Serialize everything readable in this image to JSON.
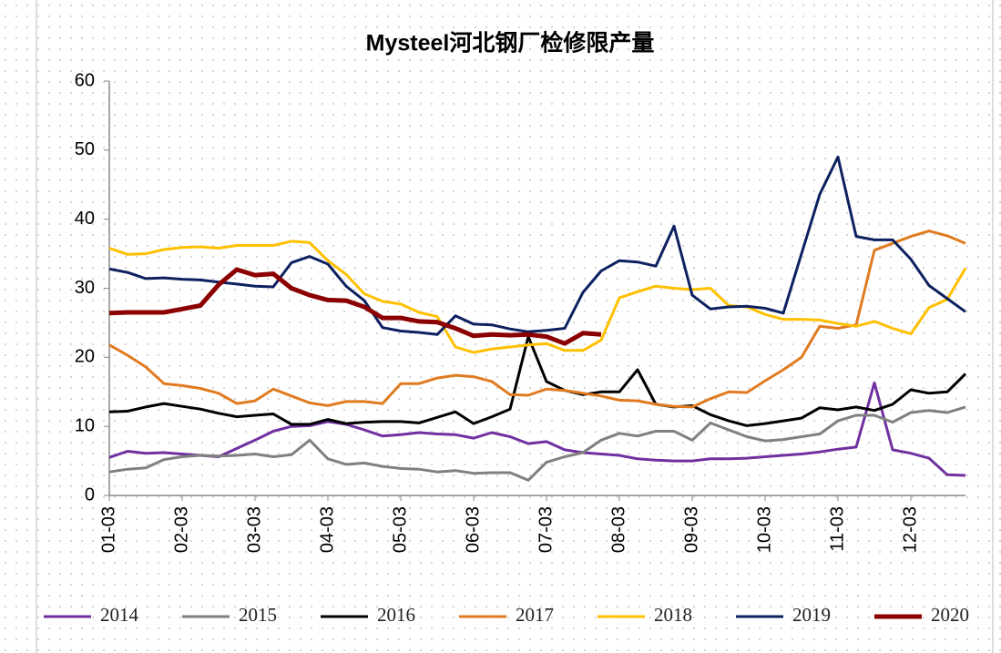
{
  "chart_data": {
    "type": "line",
    "title": "Mysteel河北钢厂检修限产量",
    "categories": [
      "01-03",
      null,
      null,
      null,
      "02-03",
      null,
      null,
      null,
      "03-03",
      null,
      null,
      null,
      "04-03",
      null,
      null,
      null,
      "05-03",
      null,
      null,
      null,
      "06-03",
      null,
      null,
      null,
      "07-03",
      null,
      null,
      null,
      "08-03",
      null,
      null,
      null,
      "09-03",
      null,
      null,
      null,
      "10-03",
      null,
      null,
      null,
      "11-03",
      null,
      null,
      null,
      "12-03",
      null,
      null,
      null
    ],
    "ylim": [
      0,
      60
    ],
    "yticks": [
      0,
      10,
      20,
      30,
      40,
      50,
      60
    ],
    "legend": "bottom",
    "series": [
      {
        "name": "2014",
        "color": "#7030a0",
        "values": [
          5.5,
          6.4,
          6.1,
          6.2,
          6.0,
          5.8,
          5.6,
          6.8,
          8.0,
          9.3,
          10.0,
          10.1,
          10.7,
          10.3,
          9.5,
          8.6,
          8.8,
          9.1,
          8.9,
          8.8,
          8.3,
          9.1,
          8.5,
          7.5,
          7.8,
          6.6,
          6.2,
          6.0,
          5.8,
          5.3,
          5.1,
          5.0,
          5.0,
          5.3,
          5.3,
          5.4,
          5.6,
          5.8,
          6.0,
          6.3,
          6.7,
          7.0,
          16.3,
          6.6,
          6.1,
          5.4,
          3.0,
          2.9
        ]
      },
      {
        "name": "2015",
        "color": "#808080",
        "values": [
          3.4,
          3.8,
          4.0,
          5.2,
          5.6,
          5.8,
          5.7,
          5.8,
          6.0,
          5.6,
          5.9,
          8.0,
          5.3,
          4.5,
          4.7,
          4.2,
          3.9,
          3.8,
          3.4,
          3.6,
          3.2,
          3.3,
          3.3,
          2.2,
          4.8,
          5.6,
          6.2,
          8.0,
          9.0,
          8.6,
          9.3,
          9.3,
          8.0,
          10.5,
          9.5,
          8.5,
          7.9,
          8.1,
          8.5,
          8.9,
          10.8,
          11.6,
          11.6,
          10.6,
          12.0,
          12.3,
          12.0,
          12.8
        ]
      },
      {
        "name": "2016",
        "color": "#000000",
        "values": [
          12.1,
          12.2,
          12.8,
          13.3,
          12.9,
          12.5,
          11.9,
          11.4,
          11.6,
          11.8,
          10.3,
          10.3,
          11.0,
          10.4,
          10.6,
          10.7,
          10.7,
          10.5,
          11.3,
          12.1,
          10.4,
          11.4,
          12.5,
          23.0,
          16.5,
          15.2,
          14.6,
          15.0,
          15.0,
          18.2,
          13.2,
          12.8,
          13.0,
          11.7,
          10.8,
          10.1,
          10.4,
          10.8,
          11.2,
          12.7,
          12.4,
          12.8,
          12.3,
          13.2,
          15.3,
          14.8,
          15.0,
          17.6
        ]
      },
      {
        "name": "2017",
        "color": "#e07b20",
        "values": [
          21.8,
          20.3,
          18.6,
          16.2,
          15.9,
          15.5,
          14.8,
          13.3,
          13.7,
          15.4,
          14.4,
          13.4,
          13.0,
          13.6,
          13.6,
          13.3,
          16.2,
          16.2,
          17.0,
          17.4,
          17.2,
          16.5,
          14.6,
          14.5,
          15.4,
          15.2,
          14.8,
          14.4,
          13.8,
          13.7,
          13.2,
          12.9,
          12.8,
          14.0,
          15.0,
          14.9,
          16.6,
          18.2,
          20.0,
          24.5,
          24.2,
          24.7,
          35.5,
          36.5,
          37.5,
          38.3,
          37.6,
          36.5
        ]
      },
      {
        "name": "2018",
        "color": "#ffc000",
        "values": [
          35.8,
          34.9,
          35.0,
          35.6,
          35.9,
          36.0,
          35.8,
          36.2,
          36.2,
          36.2,
          36.8,
          36.6,
          34.0,
          32.0,
          29.2,
          28.1,
          27.7,
          26.5,
          25.9,
          21.5,
          20.7,
          21.2,
          21.5,
          21.8,
          22.0,
          21.0,
          21.0,
          22.5,
          28.6,
          29.5,
          30.3,
          30.0,
          29.8,
          30.0,
          27.5,
          27.3,
          26.2,
          25.5,
          25.5,
          25.4,
          24.9,
          24.5,
          25.2,
          24.2,
          23.4,
          27.2,
          28.4,
          32.9
        ]
      },
      {
        "name": "2019",
        "color": "#0d2160",
        "values": [
          32.8,
          32.3,
          31.4,
          31.5,
          31.3,
          31.2,
          30.9,
          30.6,
          30.3,
          30.2,
          33.7,
          34.6,
          33.5,
          30.3,
          28.2,
          24.3,
          23.8,
          23.6,
          23.3,
          26.0,
          24.8,
          24.7,
          24.1,
          23.7,
          23.9,
          24.2,
          29.4,
          32.5,
          34.0,
          33.8,
          33.2,
          39.0,
          29.0,
          27.0,
          27.3,
          27.4,
          27.1,
          26.4,
          35.0,
          43.6,
          49.0,
          37.5,
          37.0,
          37.0,
          34.2,
          30.4,
          28.5,
          26.6
        ]
      },
      {
        "name": "2020",
        "color": "#8b0000",
        "values": [
          26.4,
          26.5,
          26.5,
          26.5,
          27.0,
          27.5,
          30.5,
          32.7,
          31.9,
          32.1,
          30.0,
          29.0,
          28.3,
          28.2,
          27.3,
          25.7,
          25.7,
          25.2,
          25.1,
          24.2,
          23.1,
          23.3,
          23.2,
          23.3,
          23.0,
          22.0,
          23.5,
          23.3,
          null,
          null,
          null,
          null,
          null,
          null,
          null,
          null,
          null,
          null,
          null,
          null,
          null,
          null,
          null,
          null,
          null,
          null,
          null,
          null
        ]
      }
    ]
  }
}
